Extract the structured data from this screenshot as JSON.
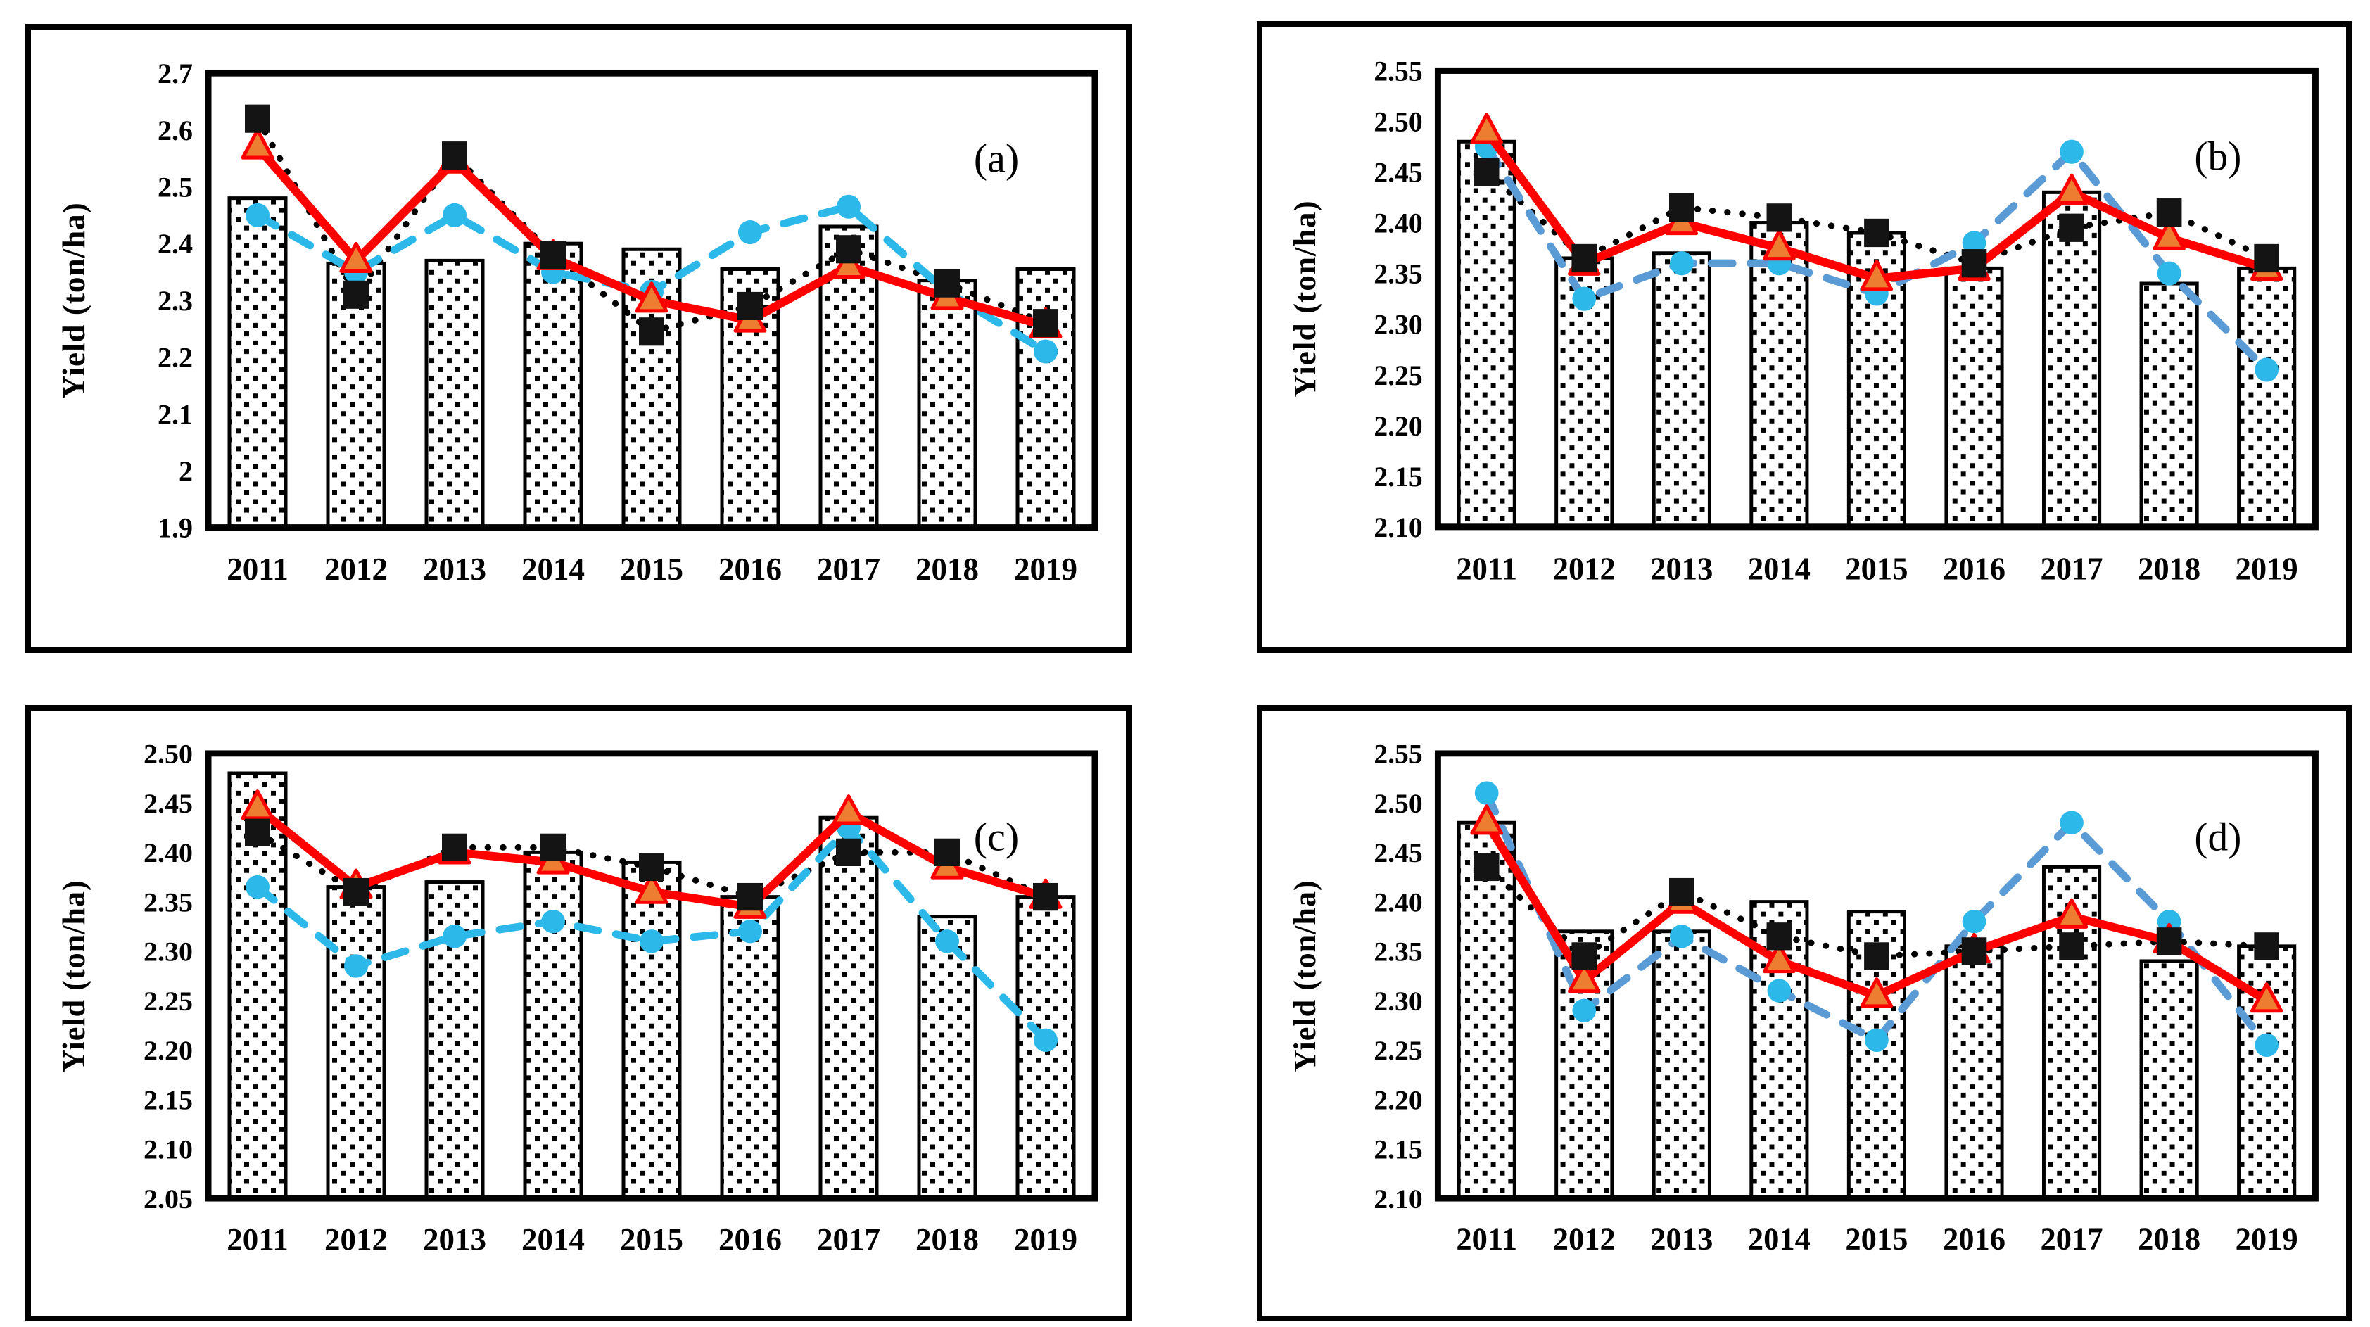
{
  "figure": {
    "description": "Four-panel yield comparison figure",
    "ylabel": "Yield (ton/ha)",
    "categories": [
      "2011",
      "2012",
      "2013",
      "2014",
      "2015",
      "2016",
      "2017",
      "2018",
      "2019"
    ],
    "colors": {
      "bar_fill": "#ffffff",
      "bar_pattern_dot": "#000000",
      "bar_border": "#000000",
      "dotted_line": "#000000",
      "square_marker": "#141414",
      "red_line": "#ff0000",
      "triangle_fill": "#ed7d31",
      "cyan_dash": "#2db8ea",
      "steel_dash": "#5b9bd5",
      "circle_marker": "#2db8ea"
    }
  },
  "chart_data": [
    {
      "id": "a",
      "panel_label": "(a)",
      "type": "bar",
      "title": "",
      "xlabel": "",
      "ylabel": "Yield (ton/ha)",
      "grid": false,
      "legend": "none",
      "categories": [
        "2011",
        "2012",
        "2013",
        "2014",
        "2015",
        "2016",
        "2017",
        "2018",
        "2019"
      ],
      "ylim": [
        1.9,
        2.7
      ],
      "ytick_values": [
        1.9,
        2.0,
        2.1,
        2.2,
        2.3,
        2.4,
        2.5,
        2.6,
        2.7
      ],
      "ytick_labels": [
        "1.9",
        "2",
        "2.1",
        "2.2",
        "2.3",
        "2.4",
        "2.5",
        "2.6",
        "2.7"
      ],
      "series": [
        {
          "name": "bars",
          "type": "bar",
          "values": [
            2.48,
            2.365,
            2.37,
            2.4,
            2.39,
            2.355,
            2.43,
            2.335,
            2.355
          ]
        },
        {
          "name": "dotted-black-squares",
          "type": "line",
          "style": "dotted",
          "color": "#000000",
          "marker": "square",
          "marker_color": "#141414",
          "values": [
            2.62,
            2.31,
            2.555,
            2.38,
            2.245,
            2.29,
            2.39,
            2.33,
            2.26
          ]
        },
        {
          "name": "dashed-blue-circles",
          "type": "line",
          "style": "dashed",
          "color": "#2db8ea",
          "marker": "circle",
          "marker_color": "#2db8ea",
          "values": [
            2.45,
            2.35,
            2.45,
            2.35,
            2.315,
            2.42,
            2.465,
            2.315,
            2.21
          ]
        },
        {
          "name": "solid-red-triangles",
          "type": "line",
          "style": "solid",
          "color": "#ff0000",
          "marker": "triangle",
          "marker_color": "#ed7d31",
          "values": [
            2.57,
            2.37,
            2.545,
            2.375,
            2.3,
            2.265,
            2.36,
            2.305,
            2.255
          ]
        }
      ]
    },
    {
      "id": "b",
      "panel_label": "(b)",
      "type": "bar",
      "title": "",
      "xlabel": "",
      "ylabel": "Yield (ton/ha)",
      "grid": false,
      "legend": "none",
      "categories": [
        "2011",
        "2012",
        "2013",
        "2014",
        "2015",
        "2016",
        "2017",
        "2018",
        "2019"
      ],
      "ylim": [
        2.1,
        2.55
      ],
      "ytick_values": [
        2.1,
        2.15,
        2.2,
        2.25,
        2.3,
        2.35,
        2.4,
        2.45,
        2.5,
        2.55
      ],
      "ytick_labels": [
        "2.10",
        "2.15",
        "2.20",
        "2.25",
        "2.30",
        "2.35",
        "2.40",
        "2.45",
        "2.50",
        "2.55"
      ],
      "series": [
        {
          "name": "bars",
          "type": "bar",
          "values": [
            2.48,
            2.365,
            2.37,
            2.4,
            2.39,
            2.355,
            2.43,
            2.34,
            2.355
          ]
        },
        {
          "name": "dotted-black-squares",
          "type": "line",
          "style": "dotted",
          "color": "#000000",
          "marker": "square",
          "marker_color": "#141414",
          "values": [
            2.45,
            2.365,
            2.415,
            2.405,
            2.39,
            2.36,
            2.395,
            2.41,
            2.365
          ]
        },
        {
          "name": "dashed-blue-circles",
          "type": "line",
          "style": "dashed",
          "color": "#5b9bd5",
          "marker": "circle",
          "marker_color": "#2db8ea",
          "values": [
            2.475,
            2.325,
            2.36,
            2.36,
            2.33,
            2.38,
            2.47,
            2.35,
            2.255
          ]
        },
        {
          "name": "solid-red-triangles",
          "type": "line",
          "style": "solid",
          "color": "#ff0000",
          "marker": "triangle",
          "marker_color": "#ed7d31",
          "values": [
            2.49,
            2.36,
            2.4,
            2.375,
            2.345,
            2.355,
            2.43,
            2.385,
            2.355
          ]
        }
      ]
    },
    {
      "id": "c",
      "panel_label": "(c)",
      "type": "bar",
      "title": "",
      "xlabel": "",
      "ylabel": "Yield (ton/ha)",
      "grid": false,
      "legend": "none",
      "categories": [
        "2011",
        "2012",
        "2013",
        "2014",
        "2015",
        "2016",
        "2017",
        "2018",
        "2019"
      ],
      "ylim": [
        2.05,
        2.5
      ],
      "ytick_values": [
        2.05,
        2.1,
        2.15,
        2.2,
        2.25,
        2.3,
        2.35,
        2.4,
        2.45,
        2.5
      ],
      "ytick_labels": [
        "2.05",
        "2.10",
        "2.15",
        "2.20",
        "2.25",
        "2.30",
        "2.35",
        "2.40",
        "2.45",
        "2.50"
      ],
      "series": [
        {
          "name": "bars",
          "type": "bar",
          "values": [
            2.48,
            2.365,
            2.37,
            2.4,
            2.39,
            2.355,
            2.435,
            2.335,
            2.355
          ]
        },
        {
          "name": "dotted-black-squares",
          "type": "line",
          "style": "dotted",
          "color": "#000000",
          "marker": "square",
          "marker_color": "#141414",
          "values": [
            2.42,
            2.36,
            2.405,
            2.405,
            2.385,
            2.355,
            2.4,
            2.4,
            2.355
          ]
        },
        {
          "name": "dashed-blue-circles",
          "type": "line",
          "style": "dashed",
          "color": "#2db8ea",
          "marker": "circle",
          "marker_color": "#2db8ea",
          "values": [
            2.365,
            2.285,
            2.315,
            2.33,
            2.31,
            2.32,
            2.425,
            2.31,
            2.21
          ]
        },
        {
          "name": "solid-red-triangles",
          "type": "line",
          "style": "solid",
          "color": "#ff0000",
          "marker": "triangle",
          "marker_color": "#ed7d31",
          "values": [
            2.445,
            2.365,
            2.4,
            2.39,
            2.36,
            2.345,
            2.44,
            2.385,
            2.355
          ]
        }
      ]
    },
    {
      "id": "d",
      "panel_label": "(d)",
      "type": "bar",
      "title": "",
      "xlabel": "",
      "ylabel": "Yield (ton/ha)",
      "grid": false,
      "legend": "none",
      "categories": [
        "2011",
        "2012",
        "2013",
        "2014",
        "2015",
        "2016",
        "2017",
        "2018",
        "2019"
      ],
      "ylim": [
        2.1,
        2.55
      ],
      "ytick_values": [
        2.1,
        2.15,
        2.2,
        2.25,
        2.3,
        2.35,
        2.4,
        2.45,
        2.5,
        2.55
      ],
      "ytick_labels": [
        "2.10",
        "2.15",
        "2.20",
        "2.25",
        "2.30",
        "2.35",
        "2.40",
        "2.45",
        "2.50",
        "2.55"
      ],
      "series": [
        {
          "name": "bars",
          "type": "bar",
          "values": [
            2.48,
            2.37,
            2.37,
            2.4,
            2.39,
            2.355,
            2.435,
            2.34,
            2.355
          ]
        },
        {
          "name": "dotted-black-squares",
          "type": "line",
          "style": "dotted",
          "color": "#000000",
          "marker": "square",
          "marker_color": "#141414",
          "values": [
            2.435,
            2.345,
            2.41,
            2.365,
            2.345,
            2.35,
            2.355,
            2.36,
            2.355
          ]
        },
        {
          "name": "dashed-blue-circles",
          "type": "line",
          "style": "dashed",
          "color": "#5b9bd5",
          "marker": "circle",
          "marker_color": "#2db8ea",
          "values": [
            2.51,
            2.29,
            2.365,
            2.31,
            2.26,
            2.38,
            2.48,
            2.38,
            2.255
          ]
        },
        {
          "name": "solid-red-triangles",
          "type": "line",
          "style": "solid",
          "color": "#ff0000",
          "marker": "triangle",
          "marker_color": "#ed7d31",
          "values": [
            2.48,
            2.32,
            2.4,
            2.34,
            2.305,
            2.35,
            2.385,
            2.36,
            2.3
          ]
        }
      ]
    }
  ]
}
